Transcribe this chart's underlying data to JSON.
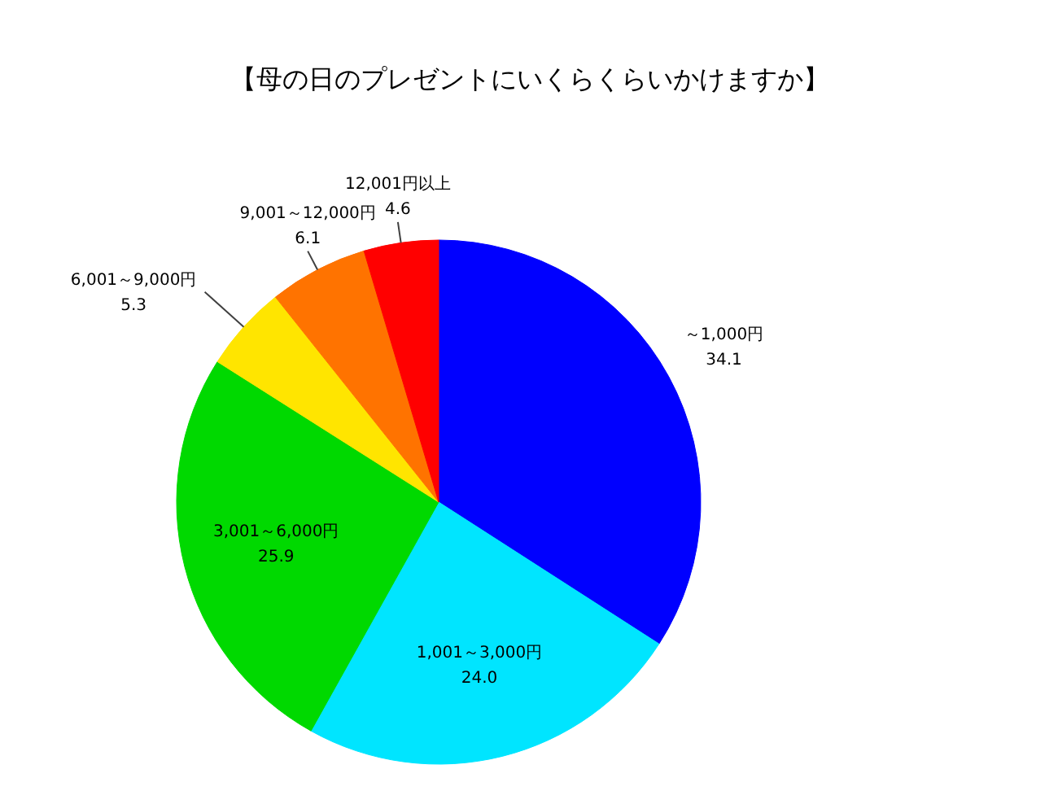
{
  "chart_data": {
    "type": "pie",
    "title": "【母の日のプレゼントにいくらくらいかけますか】",
    "categories": [
      "～1,000円",
      "1,001～3,000円",
      "3,001～6,000円",
      "6,001～9,000円",
      "9,001～12,000円",
      "12,001円以上"
    ],
    "values": [
      34.1,
      24.0,
      25.9,
      5.3,
      6.1,
      4.6
    ],
    "value_labels": [
      "34.1",
      "24.0",
      "25.9",
      "5.3",
      "6.1",
      "4.6"
    ],
    "colors": [
      "#0000ff",
      "#00e5ff",
      "#00d900",
      "#ffe500",
      "#ff7300",
      "#ff0000"
    ]
  }
}
